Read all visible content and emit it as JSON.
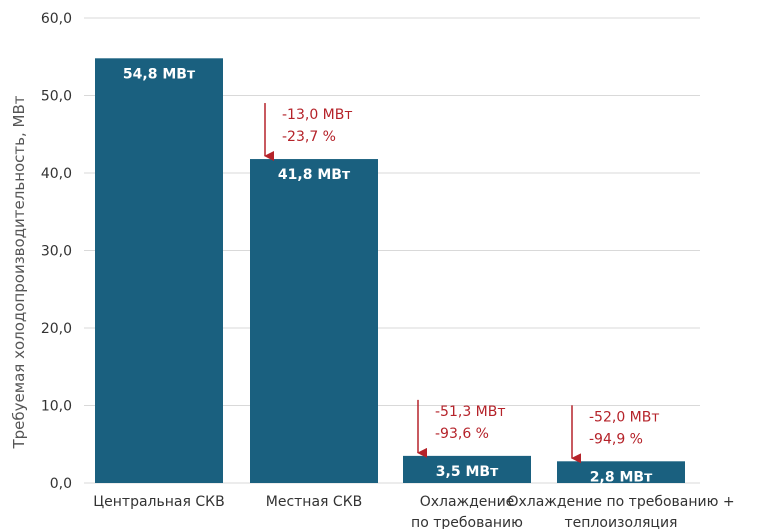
{
  "chart_data": {
    "type": "bar",
    "title": "",
    "xlabel": "",
    "ylabel": "Требуемая холодопроизводительность, МВт",
    "ylim": [
      0,
      60
    ],
    "yticks": [
      "0,0",
      "10,0",
      "20,0",
      "30,0",
      "40,0",
      "50,0",
      "60,0"
    ],
    "grid": true,
    "categories": [
      [
        "Центральная СКВ"
      ],
      [
        "Местная СКВ"
      ],
      [
        "Охлаждение",
        "по требованию"
      ],
      [
        "Охлаждение  по требованию +",
        "теплоизоляция"
      ]
    ],
    "values": [
      54.8,
      41.8,
      3.5,
      2.8
    ],
    "data_labels": [
      "54,8 МВт",
      "41,8 МВт",
      "3,5 МВт",
      "2,8 МВт"
    ],
    "annotations": [
      null,
      [
        "-13,0 МВт",
        "-23,7 %"
      ],
      [
        "-51,3 МВт",
        "-93,6 %"
      ],
      [
        "-52,0 МВт",
        "-94,9 %"
      ]
    ],
    "colors": {
      "bar": "#1a607f",
      "annotation": "#b5232a",
      "grid": "#d9d9d9",
      "text": "#333333"
    }
  }
}
